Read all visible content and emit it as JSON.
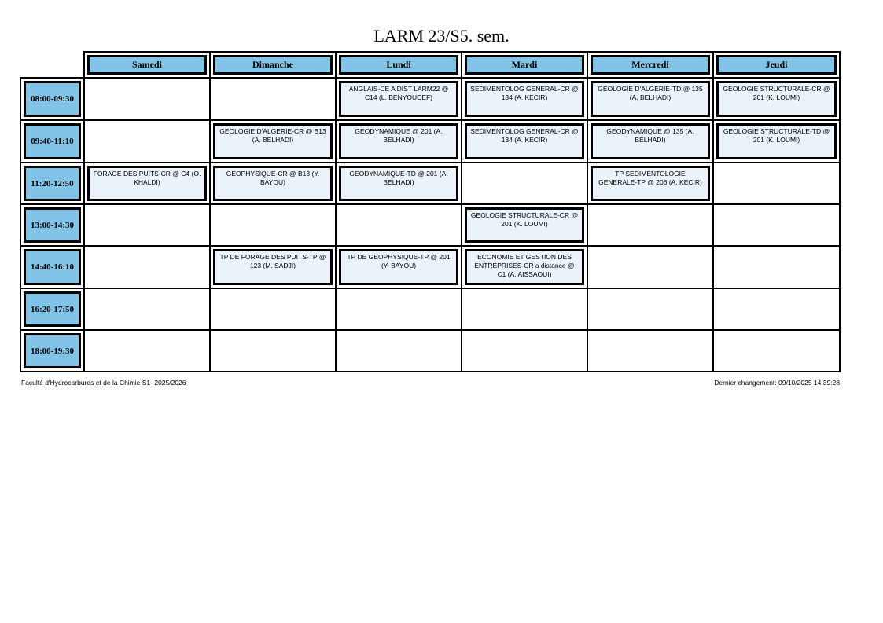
{
  "title": "LARM 23/S5. sem.",
  "days": [
    "Samedi",
    "Dimanche",
    "Lundi",
    "Mardi",
    "Mercredi",
    "Jeudi"
  ],
  "rows": [
    {
      "time": "08:00-09:30",
      "cells": [
        null,
        null,
        "ANGLAIS-CE A DIST  LARM22 @ C14 (L. BENYOUCEF)",
        "SEDIMENTOLOG GENERAL-CR @ 134 (A. KECIR)",
        "GEOLOGIE D'ALGERIE-TD @ 135 (A. BELHADI)",
        "GEOLOGIE STRUCTURALE-CR @ 201 (K. LOUMI)"
      ]
    },
    {
      "time": "09:40-11:10",
      "cells": [
        null,
        "GEOLOGIE D'ALGERIE-CR @ B13 (A. BELHADI)",
        "GEODYNAMIQUE @ 201 (A. BELHADI)",
        "SEDIMENTOLOG GENERAL-CR @ 134 (A. KECIR)",
        "GEODYNAMIQUE @ 135 (A. BELHADI)",
        "GEOLOGIE STRUCTURALE-TD @ 201 (K. LOUMI)"
      ]
    },
    {
      "time": "11:20-12:50",
      "cells": [
        "FORAGE DES PUITS-CR @ C4 (O. KHALDI)",
        "GEOPHYSIQUE-CR @ B13 (Y. BAYOU)",
        "GEODYNAMIQUE-TD @ 201 (A. BELHADI)",
        null,
        "TP SEDIMENTOLOGIE GENERALE-TP @ 206 (A. KECIR)",
        null
      ]
    },
    {
      "time": "13:00-14:30",
      "cells": [
        null,
        null,
        null,
        "GEOLOGIE STRUCTURALE-CR @ 201 (K. LOUMI)",
        null,
        null
      ]
    },
    {
      "time": "14:40-16:10",
      "cells": [
        null,
        "TP DE FORAGE DES PUITS-TP @ 123 (M. SADJI)",
        "TP DE GEOPHYSIQUE-TP @ 201 (Y. BAYOU)",
        "ECONOMIE ET GESTION DES ENTREPRISES-CR  a distance @ C1 (A. AISSAOUI)",
        null,
        null
      ]
    },
    {
      "time": "16:20-17:50",
      "cells": [
        null,
        null,
        null,
        null,
        null,
        null
      ]
    },
    {
      "time": "18:00-19:30",
      "cells": [
        null,
        null,
        null,
        null,
        null,
        null
      ]
    }
  ],
  "footer": {
    "left": "Faculté d'Hydrocarbures et de la Chimie S1- 2025/2026",
    "right": "Dernier changement: 09/10/2025 14:39:28"
  },
  "colors": {
    "header_fill": "#82c4e8",
    "session_fill": "#eaf2fa"
  }
}
